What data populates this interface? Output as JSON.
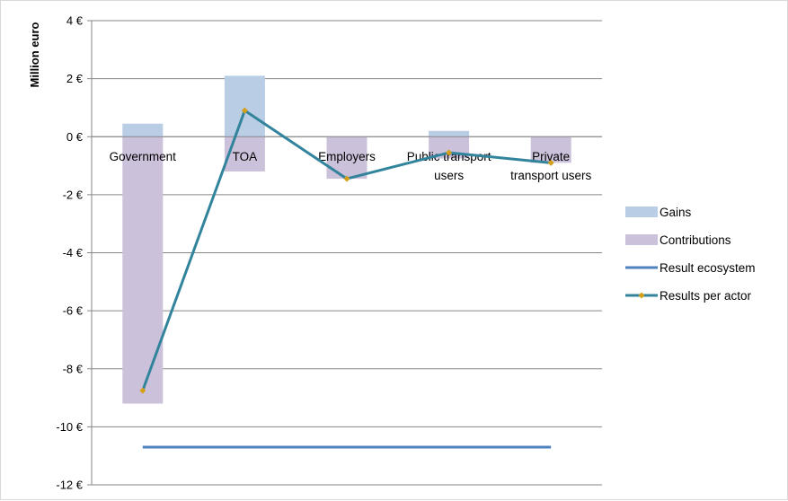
{
  "chart_data": {
    "type": "bar",
    "ylabel": "Million euro",
    "xlabel": "",
    "title": "",
    "ylim": [
      -12,
      4
    ],
    "yticks": [
      4,
      2,
      0,
      -2,
      -4,
      -6,
      -8,
      -10,
      -12
    ],
    "ytick_labels": [
      "4 €",
      "2 €",
      "0 €",
      "-2 €",
      "-4 €",
      "-6 €",
      "-8 €",
      "-10 €",
      "-12 €"
    ],
    "grid": true,
    "legend_position": "right",
    "categories": [
      {
        "lines": [
          "Government"
        ]
      },
      {
        "lines": [
          "TOA"
        ]
      },
      {
        "lines": [
          "Employers"
        ]
      },
      {
        "lines": [
          "Public transport",
          "users"
        ]
      },
      {
        "lines": [
          "Private",
          "transport users"
        ]
      }
    ],
    "series": [
      {
        "name": "Gains",
        "kind": "bar",
        "color": "#b9cde5",
        "values": [
          0.45,
          2.1,
          0.0,
          0.2,
          0.0
        ]
      },
      {
        "name": "Contributions",
        "kind": "bar",
        "color": "#ccc1da",
        "values": [
          -9.2,
          -1.2,
          -1.45,
          -0.75,
          -0.9
        ]
      },
      {
        "name": "Result ecosystem",
        "kind": "line",
        "color": "#4f81bd",
        "values": [
          -10.7,
          -10.7,
          -10.7,
          -10.7,
          -10.7
        ]
      },
      {
        "name": "Results per actor",
        "kind": "line-marker",
        "color": "#31849b",
        "marker_color": "#d4a017",
        "values": [
          -8.75,
          0.9,
          -1.45,
          -0.55,
          -0.9
        ]
      }
    ]
  }
}
